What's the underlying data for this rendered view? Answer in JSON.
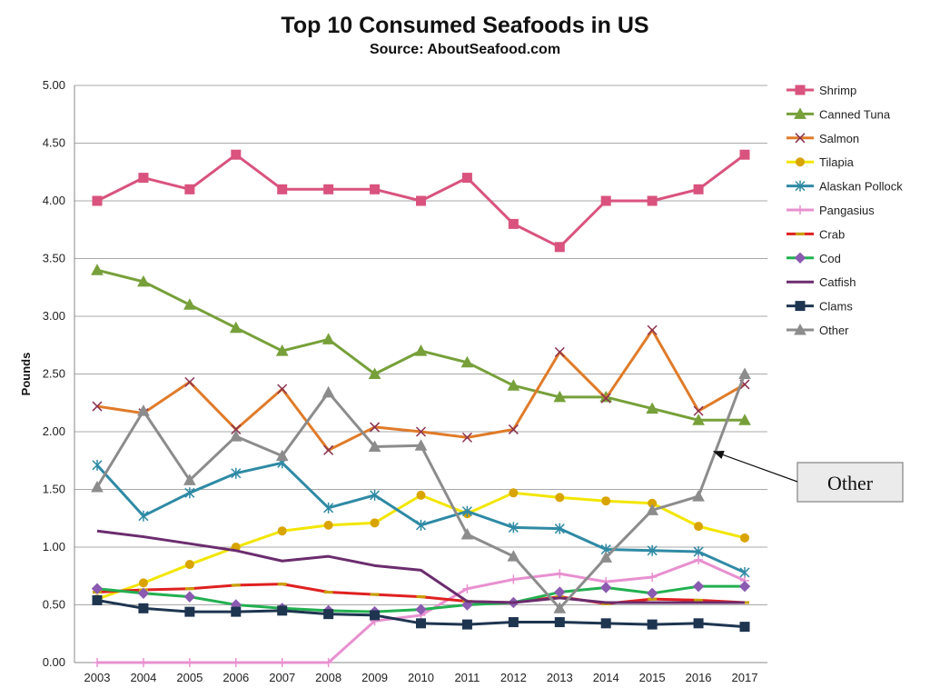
{
  "chart_data": {
    "type": "line",
    "title": "Top 10 Consumed Seafoods in US",
    "subtitle": "Source: AboutSeafood.com",
    "xlabel": "",
    "ylabel": "Pounds",
    "x": [
      "2003",
      "2004",
      "2005",
      "2006",
      "2007",
      "2008",
      "2009",
      "2010",
      "2011",
      "2012",
      "2013",
      "2014",
      "2015",
      "2016",
      "2017"
    ],
    "ylim": [
      0,
      5
    ],
    "yticks": [
      "0.00",
      "0.50",
      "1.00",
      "1.50",
      "2.00",
      "2.50",
      "3.00",
      "3.50",
      "4.00",
      "4.50",
      "5.00"
    ],
    "grid": true,
    "legend_position": "right",
    "series": [
      {
        "name": "Shrimp",
        "color": "#d9537e",
        "marker": "square",
        "values": [
          4.0,
          4.2,
          4.1,
          4.4,
          4.1,
          4.1,
          4.1,
          4.0,
          4.2,
          3.8,
          3.6,
          4.0,
          4.0,
          4.1,
          4.4
        ]
      },
      {
        "name": "Canned Tuna",
        "color": "#77a03a",
        "marker": "triangle",
        "values": [
          3.4,
          3.3,
          3.1,
          2.9,
          2.7,
          2.8,
          2.5,
          2.7,
          2.6,
          2.4,
          2.3,
          2.3,
          2.2,
          2.1,
          2.1
        ]
      },
      {
        "name": "Salmon",
        "color": "#e07b2a",
        "marker": "x",
        "values": [
          2.22,
          2.16,
          2.43,
          2.02,
          2.37,
          1.84,
          2.04,
          2.0,
          1.95,
          2.02,
          2.69,
          2.29,
          2.88,
          2.18,
          2.41
        ]
      },
      {
        "name": "Tilapia",
        "color": "#f2e600",
        "marker": "circle",
        "values": [
          0.55,
          0.69,
          0.85,
          1.0,
          1.14,
          1.19,
          1.21,
          1.45,
          1.29,
          1.47,
          1.43,
          1.4,
          1.38,
          1.18,
          1.08
        ]
      },
      {
        "name": "Alaskan Pollock",
        "color": "#2f8aa5",
        "marker": "star",
        "values": [
          1.71,
          1.27,
          1.47,
          1.64,
          1.73,
          1.34,
          1.45,
          1.19,
          1.31,
          1.17,
          1.16,
          0.98,
          0.97,
          0.96,
          0.78
        ]
      },
      {
        "name": "Pangasius",
        "color": "#e890d0",
        "marker": "plus",
        "values": [
          0.0,
          0.0,
          0.0,
          0.0,
          0.0,
          0.0,
          0.36,
          0.41,
          0.64,
          0.72,
          0.77,
          0.7,
          0.74,
          0.89,
          0.71
        ]
      },
      {
        "name": "Crab",
        "color": "#e02020",
        "marker": "dash",
        "values": [
          0.61,
          0.63,
          0.64,
          0.67,
          0.68,
          0.61,
          0.59,
          0.57,
          0.53,
          0.52,
          0.57,
          0.51,
          0.55,
          0.54,
          0.52
        ]
      },
      {
        "name": "Cod",
        "color": "#22b050",
        "marker": "diamond",
        "values": [
          0.64,
          0.6,
          0.57,
          0.5,
          0.47,
          0.45,
          0.44,
          0.46,
          0.5,
          0.52,
          0.61,
          0.65,
          0.6,
          0.66,
          0.66
        ]
      },
      {
        "name": "Catfish",
        "color": "#6b2c6e",
        "marker": "none",
        "values": [
          1.14,
          1.09,
          1.03,
          0.97,
          0.88,
          0.92,
          0.84,
          0.8,
          0.53,
          0.52,
          0.56,
          0.52,
          0.52,
          0.52,
          0.52
        ]
      },
      {
        "name": "Clams",
        "color": "#1e3550",
        "marker": "square",
        "values": [
          0.54,
          0.47,
          0.44,
          0.44,
          0.45,
          0.42,
          0.41,
          0.34,
          0.33,
          0.35,
          0.35,
          0.34,
          0.33,
          0.34,
          0.31
        ]
      },
      {
        "name": "Other",
        "color": "#8c8c8c",
        "marker": "triangle",
        "values": [
          1.52,
          2.18,
          1.58,
          1.96,
          1.79,
          2.34,
          1.87,
          1.88,
          1.11,
          0.92,
          0.47,
          0.91,
          1.32,
          1.44,
          2.5
        ]
      }
    ],
    "annotation": {
      "text": "Other",
      "points_to": {
        "series": "Other",
        "x": "2017"
      }
    }
  }
}
